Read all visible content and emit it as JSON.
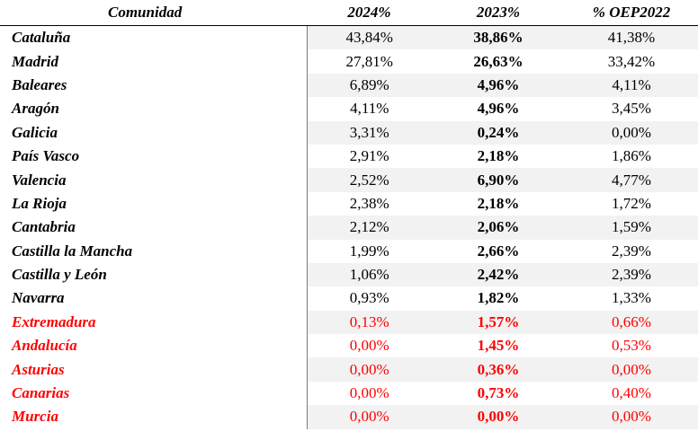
{
  "headers": [
    "Comunidad",
    "2024%",
    "2023%",
    "% OEP2022"
  ],
  "rows": [
    {
      "name": "Cataluña",
      "y2024": "43,84%",
      "y2023": "38,86%",
      "oep": "41,38%",
      "highlight": false
    },
    {
      "name": "Madrid",
      "y2024": "27,81%",
      "y2023": "26,63%",
      "oep": "33,42%",
      "highlight": false
    },
    {
      "name": "Baleares",
      "y2024": "6,89%",
      "y2023": "4,96%",
      "oep": "4,11%",
      "highlight": false
    },
    {
      "name": "Aragón",
      "y2024": "4,11%",
      "y2023": "4,96%",
      "oep": "3,45%",
      "highlight": false
    },
    {
      "name": "Galicia",
      "y2024": "3,31%",
      "y2023": "0,24%",
      "oep": "0,00%",
      "highlight": false
    },
    {
      "name": "País Vasco",
      "y2024": "2,91%",
      "y2023": "2,18%",
      "oep": "1,86%",
      "highlight": false
    },
    {
      "name": "Valencia",
      "y2024": "2,52%",
      "y2023": "6,90%",
      "oep": "4,77%",
      "highlight": false
    },
    {
      "name": "La Rioja",
      "y2024": "2,38%",
      "y2023": "2,18%",
      "oep": "1,72%",
      "highlight": false
    },
    {
      "name": "Cantabria",
      "y2024": "2,12%",
      "y2023": "2,06%",
      "oep": "1,59%",
      "highlight": false
    },
    {
      "name": "Castilla la Mancha",
      "y2024": "1,99%",
      "y2023": "2,66%",
      "oep": "2,39%",
      "highlight": false
    },
    {
      "name": "Castilla y León",
      "y2024": "1,06%",
      "y2023": "2,42%",
      "oep": "2,39%",
      "highlight": false
    },
    {
      "name": "Navarra",
      "y2024": "0,93%",
      "y2023": "1,82%",
      "oep": "1,33%",
      "highlight": false
    },
    {
      "name": "Extremadura",
      "y2024": "0,13%",
      "y2023": "1,57%",
      "oep": "0,66%",
      "highlight": true
    },
    {
      "name": "Andalucía",
      "y2024": "0,00%",
      "y2023": "1,45%",
      "oep": "0,53%",
      "highlight": true
    },
    {
      "name": "Asturias",
      "y2024": "0,00%",
      "y2023": "0,36%",
      "oep": "0,00%",
      "highlight": true
    },
    {
      "name": "Canarias",
      "y2024": "0,00%",
      "y2023": "0,73%",
      "oep": "0,40%",
      "highlight": true
    },
    {
      "name": "Murcia",
      "y2024": "0,00%",
      "y2023": "0,00%",
      "oep": "0,00%",
      "highlight": true
    }
  ],
  "colors": {
    "highlight_text": "#ff0000",
    "row_shade": "#f2f2f2",
    "text": "#000000"
  }
}
